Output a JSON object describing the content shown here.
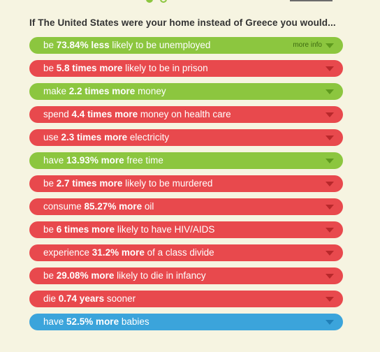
{
  "heading": "If The United States were your home instead of Greece you would...",
  "rows": [
    {
      "pre": "be ",
      "bold": "73.84% less",
      "post": " likely to be unemployed",
      "color": "green",
      "more": "more info"
    },
    {
      "pre": "be ",
      "bold": "5.8 times more",
      "post": " likely to be in prison",
      "color": "red"
    },
    {
      "pre": "make ",
      "bold": "2.2 times more",
      "post": " money",
      "color": "green"
    },
    {
      "pre": "spend ",
      "bold": "4.4 times more",
      "post": " money on health care",
      "color": "red"
    },
    {
      "pre": "use ",
      "bold": "2.3 times more",
      "post": " electricity",
      "color": "red"
    },
    {
      "pre": "have ",
      "bold": "13.93% more",
      "post": " free time",
      "color": "green"
    },
    {
      "pre": "be ",
      "bold": "2.7 times more",
      "post": " likely to be murdered",
      "color": "red"
    },
    {
      "pre": "consume ",
      "bold": "85.27% more",
      "post": " oil",
      "color": "red"
    },
    {
      "pre": "be ",
      "bold": "6 times more",
      "post": " likely to have HIV/AIDS",
      "color": "red"
    },
    {
      "pre": "experience ",
      "bold": "31.2% more",
      "post": " of a class divide",
      "color": "red"
    },
    {
      "pre": "be ",
      "bold": "29.08% more",
      "post": " likely to die in infancy",
      "color": "red"
    },
    {
      "pre": "die ",
      "bold": "0.74 years",
      "post": " sooner",
      "color": "red"
    },
    {
      "pre": "have ",
      "bold": "52.5% more",
      "post": " babies",
      "color": "blue"
    }
  ],
  "colors": {
    "green": "#8cc63f",
    "red": "#e8494d",
    "blue": "#3ba4db",
    "background": "#f6f4e1"
  }
}
